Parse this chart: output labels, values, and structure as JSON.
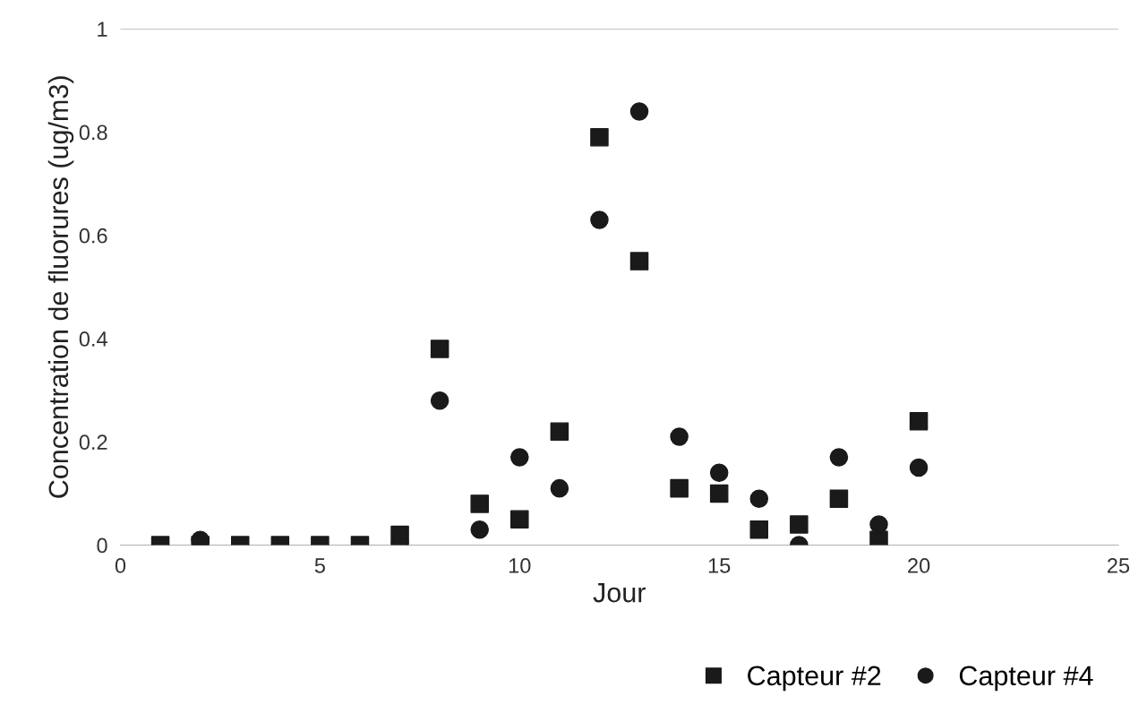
{
  "chart_data": {
    "type": "scatter",
    "xlabel": "Jour",
    "ylabel": "Concentration de fluorures (ug/m3)",
    "x": [
      1,
      2,
      3,
      4,
      5,
      6,
      7,
      8,
      9,
      10,
      11,
      12,
      13,
      14,
      15,
      16,
      17,
      18,
      19,
      20
    ],
    "series": [
      {
        "name": "Capteur #2",
        "color": "#1a1a1a",
        "marker": "square",
        "values": [
          0,
          0,
          0,
          0,
          0,
          0,
          0.02,
          0.38,
          0.08,
          0.05,
          0.22,
          0.79,
          0.55,
          0.11,
          0.1,
          0.03,
          0.04,
          0.09,
          0.01,
          0.24
        ]
      },
      {
        "name": "Capteur #4",
        "color": "#1a1a1a",
        "marker": "circle",
        "values": [
          null,
          0.01,
          null,
          null,
          null,
          null,
          0,
          0.28,
          0.03,
          0.17,
          0.11,
          0.63,
          0.84,
          0.21,
          0.14,
          0.09,
          0,
          0.17,
          0.04,
          0.15
        ]
      }
    ],
    "xlim": [
      0,
      25
    ],
    "xticks": [
      0,
      5,
      10,
      15,
      20,
      25
    ],
    "ylim": [
      0,
      1
    ],
    "yticks": [
      0,
      0.2,
      0.4,
      0.6,
      0.8,
      1
    ],
    "ref_lines": [
      {
        "axis": "y",
        "value": 1,
        "label": null,
        "color": "#b0b0b0"
      }
    ],
    "grid": false,
    "legend": "bottom right"
  }
}
